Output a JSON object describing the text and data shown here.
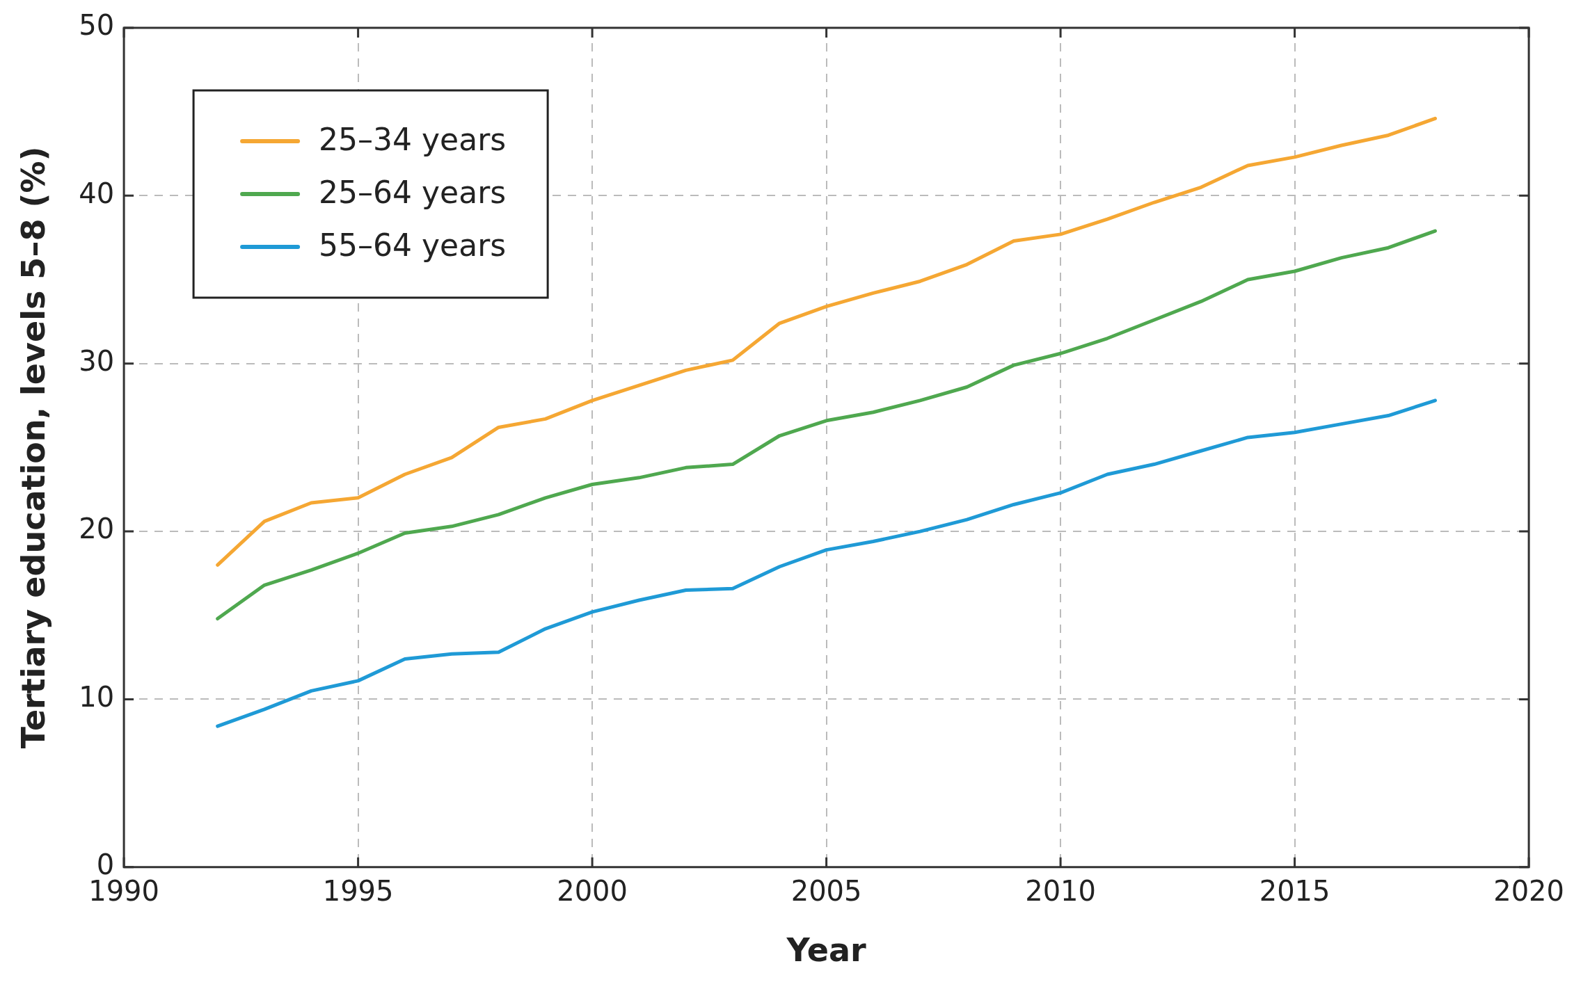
{
  "chart_data": {
    "type": "line",
    "xlabel": "Year",
    "ylabel": "Tertiary education, levels 5–8 (%)",
    "x": [
      1992,
      1993,
      1994,
      1995,
      1996,
      1997,
      1998,
      1999,
      2000,
      2001,
      2002,
      2003,
      2004,
      2005,
      2006,
      2007,
      2008,
      2009,
      2010,
      2011,
      2012,
      2013,
      2014,
      2015,
      2016,
      2017,
      2018
    ],
    "series": [
      {
        "name": "25–34 years",
        "color": "#f5a733",
        "values": [
          18.0,
          20.6,
          21.7,
          22.0,
          23.4,
          24.4,
          26.2,
          26.7,
          27.8,
          28.7,
          29.6,
          30.2,
          32.4,
          33.4,
          34.2,
          34.9,
          35.9,
          37.3,
          37.7,
          38.6,
          39.6,
          40.5,
          41.8,
          42.3,
          43.0,
          43.6,
          44.6
        ]
      },
      {
        "name": "25–64 years",
        "color": "#4fa84f",
        "values": [
          14.8,
          16.8,
          17.7,
          18.7,
          19.9,
          20.3,
          21.0,
          22.0,
          22.8,
          23.2,
          23.8,
          24.0,
          25.7,
          26.6,
          27.1,
          27.8,
          28.6,
          29.9,
          30.6,
          31.5,
          32.6,
          33.7,
          35.0,
          35.5,
          36.3,
          36.9,
          37.9
        ]
      },
      {
        "name": "55–64 years",
        "color": "#1f9ad6",
        "values": [
          8.4,
          9.4,
          10.5,
          11.1,
          12.4,
          12.7,
          12.8,
          14.2,
          15.2,
          15.9,
          16.5,
          16.6,
          17.9,
          18.9,
          19.4,
          20.0,
          20.7,
          21.6,
          22.3,
          23.4,
          24.0,
          24.8,
          25.6,
          25.9,
          26.4,
          26.9,
          27.8
        ]
      }
    ],
    "xlim": [
      1990,
      2020
    ],
    "xticks": [
      1990,
      1995,
      2000,
      2005,
      2010,
      2015,
      2020
    ],
    "ylim": [
      0,
      50
    ],
    "yticks": [
      0,
      10,
      20,
      30,
      40,
      50
    ],
    "grid": true,
    "legend": "top left",
    "marker": "none",
    "line_style": "solid"
  }
}
